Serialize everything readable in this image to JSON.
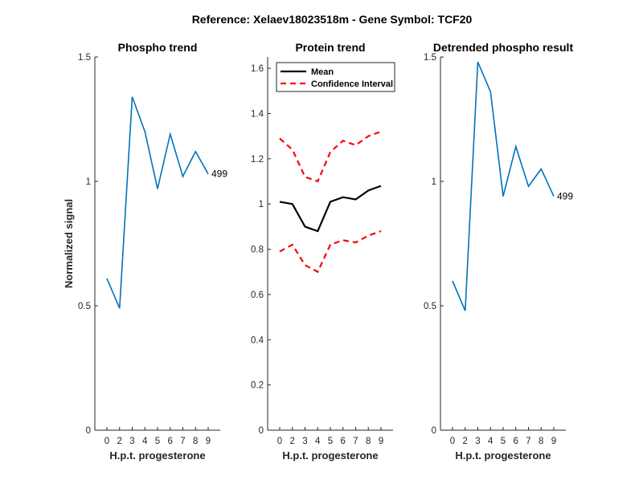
{
  "figure_title": "Reference:  Xelaev18023518m - Gene Symbol:  TCF20",
  "colors": {
    "phospho": "#0072BD",
    "mean": "#000000",
    "ci": "#FF0000",
    "axis": "#262626"
  },
  "chart_data": [
    {
      "type": "line",
      "title": "Phospho trend",
      "xlabel": "H.p.t. progesterone",
      "ylabel": "Normalized signal",
      "x_ticks": [
        "0",
        "2",
        "3",
        "4",
        "5",
        "6",
        "7",
        "8",
        "9"
      ],
      "y_ticks": [
        "0",
        "0.5",
        "1",
        "1.5"
      ],
      "ylim": [
        0,
        1.5
      ],
      "grid": false,
      "series": [
        {
          "values": [
            0.61,
            0.49,
            1.34,
            1.2,
            0.97,
            1.19,
            1.02,
            1.12,
            1.03
          ]
        }
      ],
      "annotations": [
        {
          "text": "499",
          "at_index": 8
        }
      ]
    },
    {
      "type": "line",
      "title": "Protein trend",
      "xlabel": "H.p.t. progesterone",
      "ylabel": "",
      "x_ticks": [
        "0",
        "2",
        "3",
        "4",
        "5",
        "6",
        "7",
        "8",
        "9"
      ],
      "y_ticks": [
        "0",
        "0.2",
        "0.4",
        "0.6",
        "0.8",
        "1",
        "1.2",
        "1.4",
        "1.6"
      ],
      "ylim": [
        0,
        1.65
      ],
      "grid": false,
      "legend": {
        "position": "top-left"
      },
      "series": [
        {
          "name": "Mean",
          "style": "solid",
          "values": [
            1.01,
            1.0,
            0.9,
            0.88,
            1.01,
            1.03,
            1.02,
            1.06,
            1.08
          ]
        },
        {
          "name": "Confidence Interval",
          "style": "dashed",
          "values": [
            1.29,
            1.24,
            1.12,
            1.1,
            1.23,
            1.28,
            1.26,
            1.3,
            1.32
          ]
        },
        {
          "name": "",
          "style": "dashed",
          "values": [
            0.79,
            0.82,
            0.73,
            0.7,
            0.82,
            0.84,
            0.83,
            0.86,
            0.88
          ]
        }
      ]
    },
    {
      "type": "line",
      "title": "Detrended phospho result",
      "xlabel": "H.p.t. progesterone",
      "ylabel": "",
      "x_ticks": [
        "0",
        "2",
        "3",
        "4",
        "5",
        "6",
        "7",
        "8",
        "9"
      ],
      "y_ticks": [
        "0",
        "0.5",
        "1",
        "1.5"
      ],
      "ylim": [
        0,
        1.5
      ],
      "grid": false,
      "series": [
        {
          "values": [
            0.6,
            0.48,
            1.48,
            1.36,
            0.94,
            1.14,
            0.98,
            1.05,
            0.94
          ]
        }
      ],
      "annotations": [
        {
          "text": "499",
          "at_index": 8
        }
      ]
    }
  ]
}
